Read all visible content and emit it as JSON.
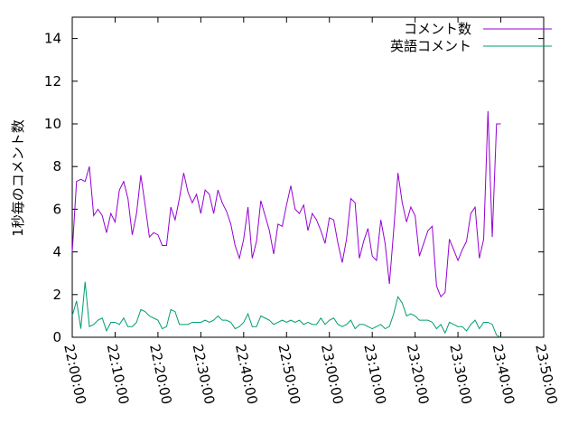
{
  "chart_data": {
    "type": "line",
    "title": "",
    "xlabel": "",
    "ylabel": "1秒毎のコメント数",
    "ylim": [
      0,
      15
    ],
    "xlim_minutes": [
      0,
      110
    ],
    "grid": false,
    "legend_position": "top-right",
    "y_ticks": [
      "0",
      "2",
      "4",
      "6",
      "8",
      "10",
      "12",
      "14"
    ],
    "x_ticks": [
      "22:00:00",
      "22:10:00",
      "22:20:00",
      "22:30:00",
      "22:40:00",
      "22:50:00",
      "23:00:00",
      "23:10:00",
      "23:20:00",
      "23:30:00",
      "23:40:00",
      "23:50:00"
    ],
    "series": [
      {
        "name": "コメント数",
        "color": "#9400d3",
        "points": [
          [
            0,
            4.0
          ],
          [
            1,
            7.3
          ],
          [
            2,
            7.4
          ],
          [
            3,
            7.3
          ],
          [
            4,
            8.0
          ],
          [
            5,
            5.7
          ],
          [
            6,
            6.0
          ],
          [
            7,
            5.7
          ],
          [
            8,
            4.9
          ],
          [
            9,
            5.8
          ],
          [
            10,
            5.4
          ],
          [
            11,
            6.9
          ],
          [
            12,
            7.3
          ],
          [
            13,
            6.5
          ],
          [
            14,
            4.8
          ],
          [
            15,
            5.8
          ],
          [
            16,
            7.6
          ],
          [
            17,
            6.2
          ],
          [
            18,
            4.7
          ],
          [
            19,
            4.9
          ],
          [
            20,
            4.8
          ],
          [
            21,
            4.3
          ],
          [
            22,
            4.3
          ],
          [
            23,
            6.1
          ],
          [
            24,
            5.5
          ],
          [
            25,
            6.5
          ],
          [
            26,
            7.7
          ],
          [
            27,
            6.8
          ],
          [
            28,
            6.3
          ],
          [
            29,
            6.7
          ],
          [
            30,
            5.8
          ],
          [
            31,
            6.9
          ],
          [
            32,
            6.7
          ],
          [
            33,
            5.8
          ],
          [
            34,
            6.9
          ],
          [
            35,
            6.3
          ],
          [
            36,
            5.9
          ],
          [
            37,
            5.3
          ],
          [
            38,
            4.3
          ],
          [
            39,
            3.7
          ],
          [
            40,
            4.6
          ],
          [
            41,
            6.1
          ],
          [
            42,
            3.7
          ],
          [
            43,
            4.5
          ],
          [
            44,
            6.4
          ],
          [
            45,
            5.7
          ],
          [
            46,
            5.0
          ],
          [
            47,
            3.9
          ],
          [
            48,
            5.3
          ],
          [
            49,
            5.2
          ],
          [
            50,
            6.2
          ],
          [
            51,
            7.1
          ],
          [
            52,
            6.0
          ],
          [
            53,
            5.8
          ],
          [
            54,
            6.2
          ],
          [
            55,
            5.0
          ],
          [
            56,
            5.8
          ],
          [
            57,
            5.5
          ],
          [
            58,
            5.0
          ],
          [
            59,
            4.4
          ],
          [
            60,
            5.6
          ],
          [
            61,
            5.5
          ],
          [
            62,
            4.4
          ],
          [
            63,
            3.5
          ],
          [
            64,
            4.6
          ],
          [
            65,
            6.5
          ],
          [
            66,
            6.3
          ],
          [
            67,
            3.7
          ],
          [
            68,
            4.5
          ],
          [
            69,
            5.1
          ],
          [
            70,
            3.8
          ],
          [
            71,
            3.6
          ],
          [
            72,
            5.5
          ],
          [
            73,
            4.4
          ],
          [
            74,
            2.5
          ],
          [
            75,
            5.0
          ],
          [
            76,
            7.7
          ],
          [
            77,
            6.3
          ],
          [
            78,
            5.4
          ],
          [
            79,
            6.1
          ],
          [
            80,
            5.7
          ],
          [
            81,
            3.8
          ],
          [
            82,
            4.4
          ],
          [
            83,
            5.0
          ],
          [
            84,
            5.2
          ],
          [
            85,
            2.4
          ],
          [
            86,
            1.9
          ],
          [
            87,
            2.1
          ],
          [
            88,
            4.6
          ],
          [
            89,
            4.1
          ],
          [
            90,
            3.6
          ],
          [
            91,
            4.1
          ],
          [
            92,
            4.5
          ],
          [
            93,
            5.8
          ],
          [
            94,
            6.1
          ],
          [
            95,
            3.7
          ],
          [
            96,
            4.6
          ],
          [
            97,
            10.6
          ],
          [
            98,
            4.7
          ],
          [
            99,
            10.0
          ],
          [
            100,
            10.0
          ]
        ]
      },
      {
        "name": "英語コメント",
        "color": "#009e73",
        "points": [
          [
            0,
            1.0
          ],
          [
            1,
            1.7
          ],
          [
            2,
            0.4
          ],
          [
            3,
            2.6
          ],
          [
            4,
            0.5
          ],
          [
            5,
            0.6
          ],
          [
            6,
            0.8
          ],
          [
            7,
            0.9
          ],
          [
            8,
            0.3
          ],
          [
            9,
            0.7
          ],
          [
            10,
            0.7
          ],
          [
            11,
            0.6
          ],
          [
            12,
            0.9
          ],
          [
            13,
            0.5
          ],
          [
            14,
            0.5
          ],
          [
            15,
            0.7
          ],
          [
            16,
            1.3
          ],
          [
            17,
            1.2
          ],
          [
            18,
            1.0
          ],
          [
            19,
            0.9
          ],
          [
            20,
            0.8
          ],
          [
            21,
            0.4
          ],
          [
            22,
            0.5
          ],
          [
            23,
            1.3
          ],
          [
            24,
            1.2
          ],
          [
            25,
            0.6
          ],
          [
            26,
            0.6
          ],
          [
            27,
            0.6
          ],
          [
            28,
            0.7
          ],
          [
            29,
            0.7
          ],
          [
            30,
            0.7
          ],
          [
            31,
            0.8
          ],
          [
            32,
            0.7
          ],
          [
            33,
            0.8
          ],
          [
            34,
            1.0
          ],
          [
            35,
            0.8
          ],
          [
            36,
            0.8
          ],
          [
            37,
            0.7
          ],
          [
            38,
            0.4
          ],
          [
            39,
            0.5
          ],
          [
            40,
            0.7
          ],
          [
            41,
            1.1
          ],
          [
            42,
            0.5
          ],
          [
            43,
            0.5
          ],
          [
            44,
            1.0
          ],
          [
            45,
            0.9
          ],
          [
            46,
            0.8
          ],
          [
            47,
            0.6
          ],
          [
            48,
            0.7
          ],
          [
            49,
            0.8
          ],
          [
            50,
            0.7
          ],
          [
            51,
            0.8
          ],
          [
            52,
            0.7
          ],
          [
            53,
            0.8
          ],
          [
            54,
            0.6
          ],
          [
            55,
            0.7
          ],
          [
            56,
            0.6
          ],
          [
            57,
            0.6
          ],
          [
            58,
            0.9
          ],
          [
            59,
            0.6
          ],
          [
            60,
            0.8
          ],
          [
            61,
            0.9
          ],
          [
            62,
            0.6
          ],
          [
            63,
            0.5
          ],
          [
            64,
            0.6
          ],
          [
            65,
            0.8
          ],
          [
            66,
            0.4
          ],
          [
            67,
            0.6
          ],
          [
            68,
            0.6
          ],
          [
            69,
            0.5
          ],
          [
            70,
            0.4
          ],
          [
            71,
            0.5
          ],
          [
            72,
            0.6
          ],
          [
            73,
            0.4
          ],
          [
            74,
            0.5
          ],
          [
            75,
            1.1
          ],
          [
            76,
            1.9
          ],
          [
            77,
            1.6
          ],
          [
            78,
            1.0
          ],
          [
            79,
            1.1
          ],
          [
            80,
            1.0
          ],
          [
            81,
            0.8
          ],
          [
            82,
            0.8
          ],
          [
            83,
            0.8
          ],
          [
            84,
            0.7
          ],
          [
            85,
            0.4
          ],
          [
            86,
            0.6
          ],
          [
            87,
            0.2
          ],
          [
            88,
            0.7
          ],
          [
            89,
            0.6
          ],
          [
            90,
            0.5
          ],
          [
            91,
            0.5
          ],
          [
            92,
            0.3
          ],
          [
            93,
            0.6
          ],
          [
            94,
            0.8
          ],
          [
            95,
            0.4
          ],
          [
            96,
            0.7
          ],
          [
            97,
            0.7
          ],
          [
            98,
            0.6
          ],
          [
            99,
            0.1
          ],
          [
            100,
            0.0
          ]
        ]
      }
    ]
  }
}
